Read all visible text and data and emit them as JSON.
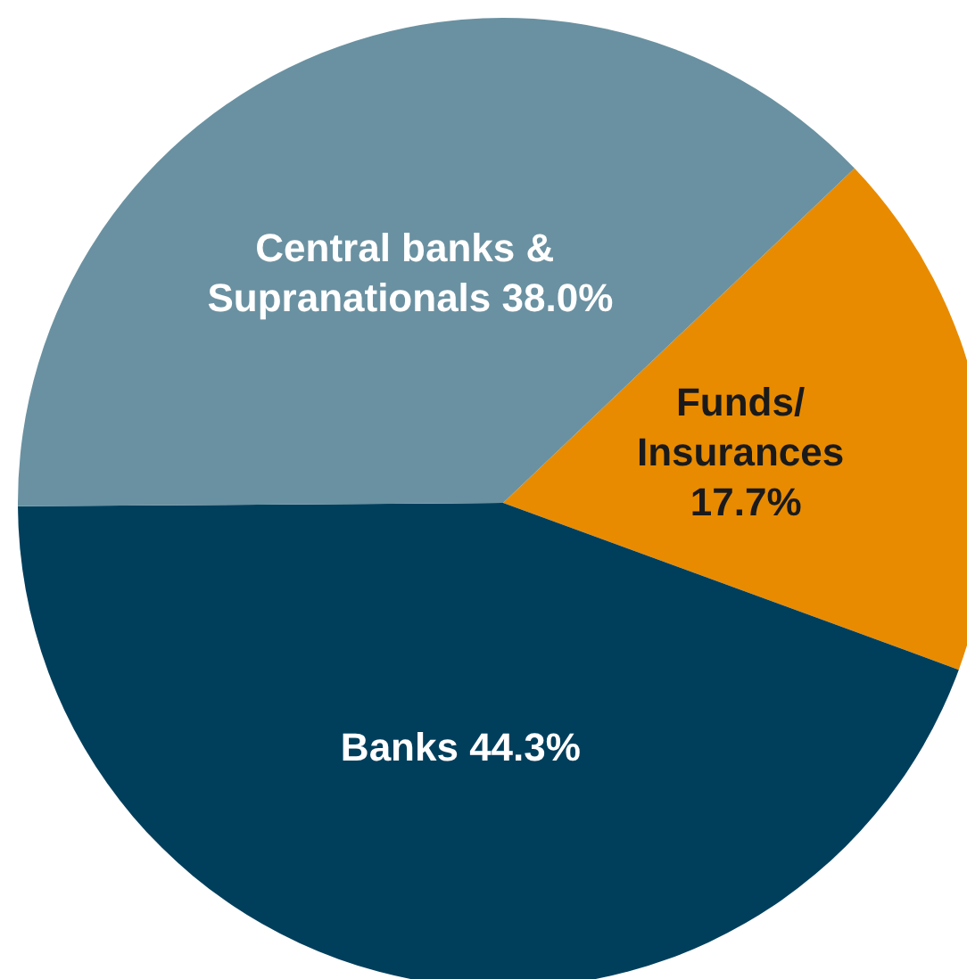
{
  "chart_data": {
    "type": "pie",
    "categories": [
      "Funds/ Insurances",
      "Banks",
      "Central banks & Supranationals"
    ],
    "values": [
      17.7,
      44.3,
      38.0
    ],
    "value_labels": [
      "17.7%",
      "44.3%",
      "38.0%"
    ],
    "colors": [
      "#e88b00",
      "#003f5c",
      "#6a91a1"
    ],
    "legend": false
  }
}
